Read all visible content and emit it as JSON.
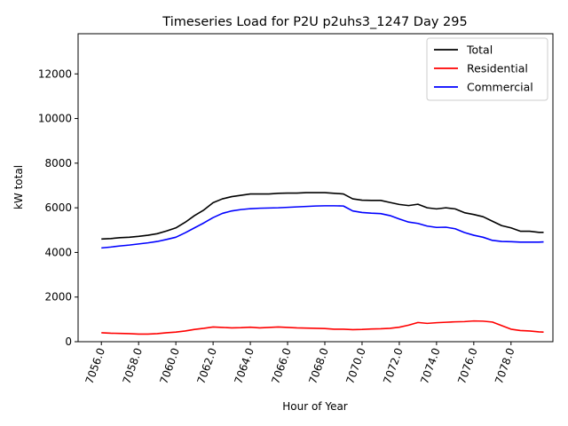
{
  "chart_data": {
    "type": "line",
    "title": "Timeseries Load for P2U p2uhs3_1247  Day 295",
    "xlabel": "Hour of Year",
    "ylabel": "kW total",
    "xlim": [
      7054.75,
      7080.25
    ],
    "ylim": [
      0,
      13800
    ],
    "x_ticks": [
      7056,
      7058,
      7060,
      7062,
      7064,
      7066,
      7068,
      7070,
      7072,
      7074,
      7076,
      7078
    ],
    "x_tick_labels": [
      "7056.0",
      "7058.0",
      "7060.0",
      "7062.0",
      "7064.0",
      "7066.0",
      "7068.0",
      "7070.0",
      "7072.0",
      "7074.0",
      "7076.0",
      "7078.0"
    ],
    "y_ticks": [
      0,
      2000,
      4000,
      6000,
      8000,
      10000,
      12000
    ],
    "y_tick_labels": [
      "0",
      "2000",
      "4000",
      "6000",
      "8000",
      "10000",
      "12000"
    ],
    "legend_position": "top-right",
    "x": [
      7056.0,
      7056.5,
      7057.0,
      7057.5,
      7058.0,
      7058.5,
      7059.0,
      7059.5,
      7060.0,
      7060.5,
      7061.0,
      7061.5,
      7062.0,
      7062.5,
      7063.0,
      7063.5,
      7064.0,
      7064.5,
      7065.0,
      7065.5,
      7066.0,
      7066.5,
      7067.0,
      7067.5,
      7068.0,
      7068.5,
      7069.0,
      7069.5,
      7070.0,
      7070.5,
      7071.0,
      7071.5,
      7072.0,
      7072.5,
      7073.0,
      7073.5,
      7074.0,
      7074.5,
      7075.0,
      7075.5,
      7076.0,
      7076.5,
      7077.0,
      7077.5,
      7078.0,
      7078.5,
      7079.0,
      7079.5,
      7079.75
    ],
    "series": [
      {
        "name": "Total",
        "color": "#000000",
        "values": [
          4600,
          4620,
          4660,
          4680,
          4720,
          4770,
          4840,
          4960,
          5100,
          5350,
          5650,
          5900,
          6230,
          6400,
          6500,
          6560,
          6620,
          6620,
          6620,
          6650,
          6660,
          6660,
          6680,
          6680,
          6680,
          6650,
          6620,
          6400,
          6340,
          6330,
          6330,
          6240,
          6150,
          6100,
          6160,
          6000,
          5950,
          6000,
          5950,
          5780,
          5700,
          5600,
          5400,
          5200,
          5100,
          4950,
          4950,
          4900,
          4900
        ]
      },
      {
        "name": "Residential",
        "color": "#ff0000",
        "values": [
          400,
          380,
          370,
          360,
          340,
          340,
          360,
          400,
          430,
          480,
          550,
          600,
          660,
          640,
          620,
          630,
          650,
          620,
          640,
          660,
          640,
          620,
          610,
          600,
          590,
          560,
          560,
          540,
          550,
          570,
          580,
          600,
          650,
          740,
          860,
          820,
          850,
          870,
          890,
          900,
          930,
          920,
          880,
          720,
          560,
          500,
          480,
          440,
          430
        ]
      },
      {
        "name": "Commercial",
        "color": "#0000ff",
        "values": [
          4200,
          4240,
          4290,
          4330,
          4380,
          4430,
          4490,
          4580,
          4680,
          4880,
          5100,
          5320,
          5560,
          5750,
          5860,
          5920,
          5960,
          5980,
          5990,
          6000,
          6020,
          6040,
          6060,
          6080,
          6090,
          6090,
          6080,
          5860,
          5790,
          5760,
          5740,
          5650,
          5500,
          5360,
          5300,
          5180,
          5120,
          5130,
          5060,
          4890,
          4770,
          4680,
          4540,
          4490,
          4480,
          4460,
          4460,
          4460,
          4470
        ]
      }
    ]
  }
}
